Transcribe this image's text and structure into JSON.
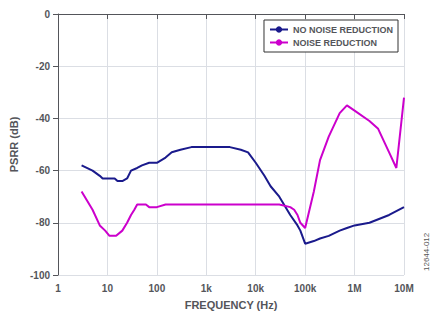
{
  "chart_data": {
    "type": "line",
    "xlabel": "FREQUENCY (Hz)",
    "ylabel": "PSRR (dB)",
    "annotation": "12644-012",
    "log": "x",
    "xlim": [
      1,
      10000000
    ],
    "xticks": [
      1,
      10,
      100,
      {
        "value": 1000,
        "label": "1k"
      },
      {
        "value": 10000,
        "label": "10k"
      },
      {
        "value": 100000,
        "label": "100k"
      },
      {
        "value": 1000000,
        "label": "1M"
      },
      {
        "value": 10000000,
        "label": "10M"
      }
    ],
    "ylim": [
      -100,
      0
    ],
    "yticks": [
      0,
      -20,
      -40,
      -60,
      -80,
      -100
    ],
    "grid": true,
    "legend": "upper right",
    "series": [
      {
        "name": "NO NOISE REDUCTION",
        "color": "#1a1a8c",
        "x": [
          3,
          5,
          7,
          8,
          9,
          10,
          12,
          14,
          16,
          18,
          20,
          25,
          30,
          40,
          50,
          70,
          100,
          150,
          200,
          300,
          500,
          700,
          1000,
          2000,
          3000,
          5000,
          7000,
          10000,
          15000,
          20000,
          30000,
          50000,
          70000,
          80000,
          100000,
          150000,
          200000,
          300000,
          500000,
          700000,
          1000000,
          2000000,
          5000000,
          10000000
        ],
        "values": [
          -58,
          -60,
          -62,
          -63,
          -63,
          -63,
          -63,
          -63,
          -64,
          -64,
          -64,
          -63,
          -60,
          -59,
          -58,
          -57,
          -57,
          -55,
          -53,
          -52,
          -51,
          -51,
          -51,
          -51,
          -51,
          -52,
          -53,
          -57,
          -62,
          -66,
          -70,
          -77,
          -81,
          -83,
          -88,
          -87,
          -86,
          -85,
          -83,
          -82,
          -81,
          -80,
          -77,
          -74
        ]
      },
      {
        "name": "NOISE REDUCTION",
        "color": "#cc00cc",
        "x": [
          3,
          5,
          7,
          9,
          11,
          15,
          20,
          25,
          30,
          35,
          40,
          50,
          60,
          70,
          80,
          100,
          150,
          200,
          300,
          500,
          700,
          1000,
          2000,
          3000,
          5000,
          7000,
          10000,
          20000,
          30000,
          50000,
          60000,
          70000,
          80000,
          100000,
          150000,
          200000,
          300000,
          500000,
          700000,
          1000000,
          2000000,
          3000000,
          5000000,
          7000000,
          10000000
        ],
        "values": [
          -68,
          -75,
          -81,
          -83,
          -85,
          -85,
          -83,
          -80,
          -77,
          -75,
          -73,
          -73,
          -73,
          -74,
          -74,
          -74,
          -73,
          -73,
          -73,
          -73,
          -73,
          -73,
          -73,
          -73,
          -73,
          -73,
          -73,
          -73,
          -73,
          -74,
          -75,
          -77,
          -80,
          -82,
          -68,
          -56,
          -47,
          -38,
          -35,
          -37,
          -41,
          -44,
          -53,
          -59,
          -32
        ]
      }
    ]
  }
}
